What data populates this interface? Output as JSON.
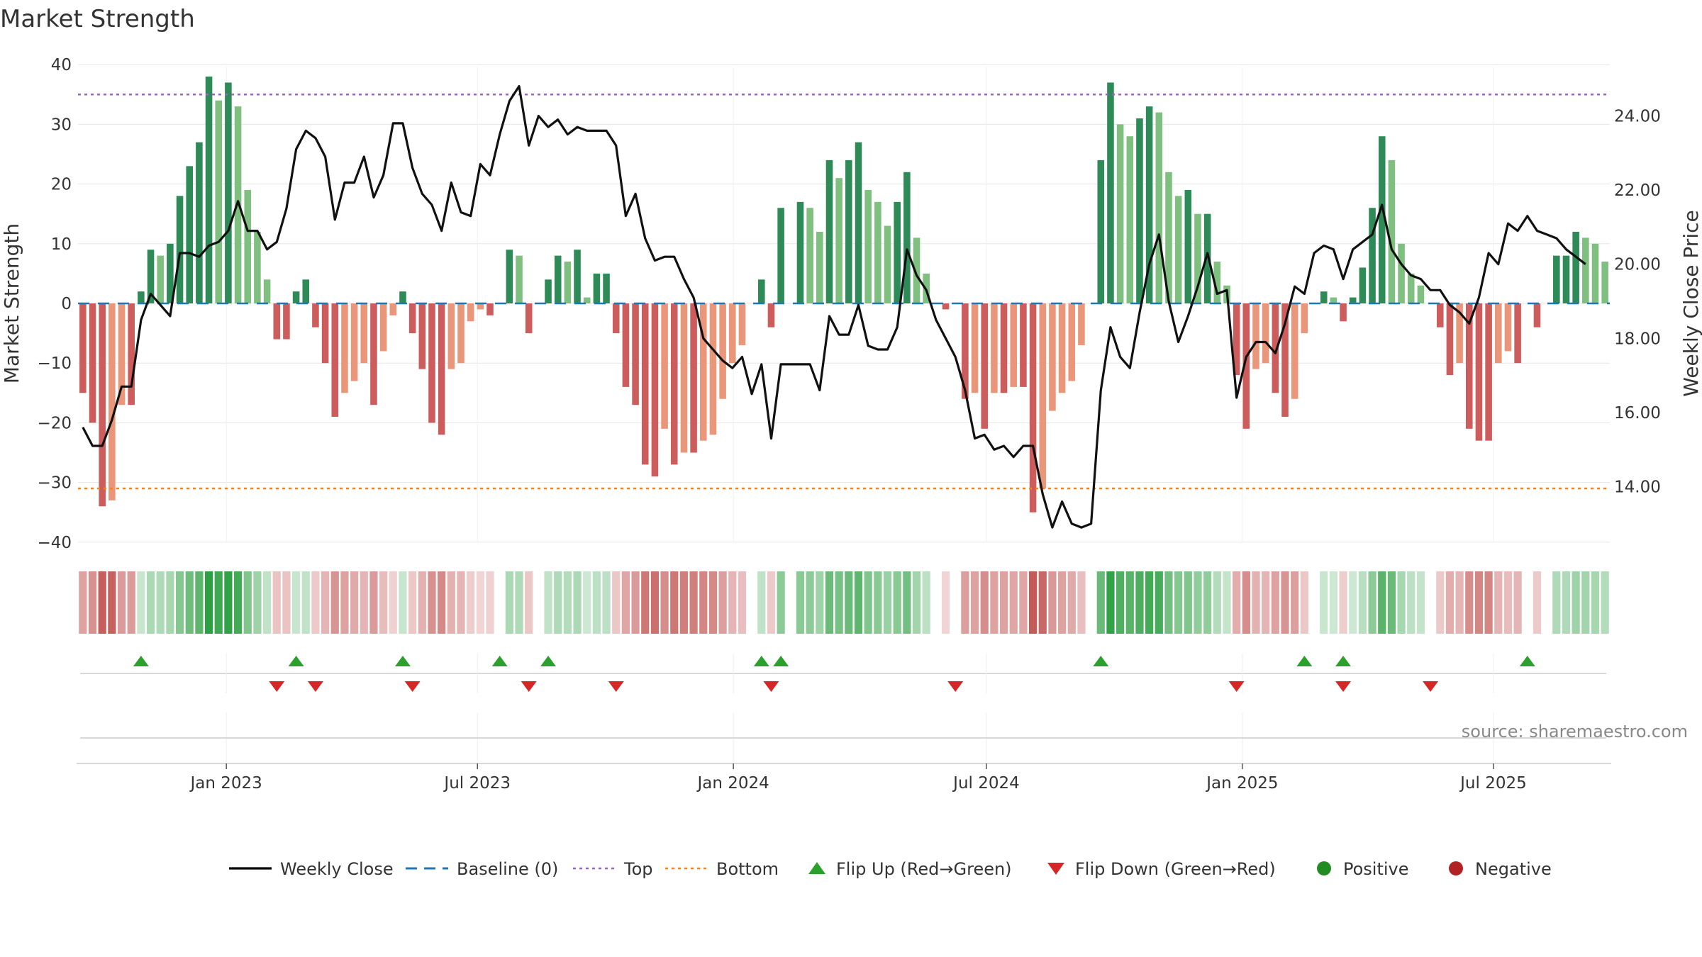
{
  "chart_data": {
    "type": "bar",
    "title": "Market Strength",
    "source_text": "source: sharemaestro.com",
    "ylabel_left": "Market Strength",
    "ylabel_right": "Weekly Close Price",
    "ylim_left": [
      -40,
      40
    ],
    "ylim_right": [
      12.5,
      25.5
    ],
    "left_ticks": [
      40,
      30,
      20,
      10,
      0,
      -10,
      -20,
      -30,
      -40
    ],
    "left_tick_labels": [
      "40",
      "30",
      "20",
      "10",
      "0",
      "−10",
      "−20",
      "−30",
      "−40"
    ],
    "right_ticks": [
      24,
      22,
      20,
      18,
      16,
      14
    ],
    "right_tick_labels": [
      "24.00",
      "22.00",
      "20.00",
      "18.00",
      "16.00",
      "14.00"
    ],
    "x_week_range": [
      0,
      158
    ],
    "x_ticks": [
      {
        "week": 15.3,
        "label": "Jan 2023"
      },
      {
        "week": 41.2,
        "label": "Jul 2023"
      },
      {
        "week": 67.6,
        "label": "Jan 2024"
      },
      {
        "week": 93.7,
        "label": "Jul 2024"
      },
      {
        "week": 120.1,
        "label": "Jan 2025"
      },
      {
        "week": 146.0,
        "label": "Jul 2025"
      }
    ],
    "top_line": 35,
    "bottom_line": -31,
    "strength": [
      -15,
      -20,
      -34,
      -33,
      -17,
      -17,
      2,
      9,
      8,
      10,
      18,
      23,
      27,
      38,
      34,
      37,
      33,
      19,
      12,
      4,
      -6,
      -6,
      2,
      4,
      -4,
      -10,
      -19,
      -15,
      -13,
      -10,
      -17,
      -8,
      -2,
      2,
      -5,
      -11,
      -20,
      -22,
      -11,
      -10,
      -3,
      -1,
      -2,
      0,
      9,
      8,
      -5,
      0,
      4,
      8,
      7,
      9,
      1,
      5,
      5,
      -5,
      -14,
      -17,
      -27,
      -29,
      -21,
      -27,
      -25,
      -25,
      -23,
      -22,
      -16,
      -10,
      -7,
      0,
      4,
      -4,
      16,
      0,
      17,
      16,
      12,
      24,
      21,
      24,
      27,
      19,
      17,
      13,
      17,
      22,
      11,
      5,
      0,
      -1,
      0,
      -16,
      -15,
      -21,
      -15,
      -15,
      -14,
      -14,
      -35,
      -31,
      -18,
      -15,
      -13,
      -7,
      0,
      24,
      37,
      30,
      28,
      31,
      33,
      32,
      22,
      18,
      19,
      15,
      15,
      7,
      3,
      -12,
      -21,
      -11,
      -10,
      -15,
      -19,
      -16,
      -5,
      0,
      2,
      1,
      -3,
      1,
      6,
      16,
      28,
      24,
      10,
      5,
      3,
      0,
      -4,
      -12,
      -10,
      -21,
      -23,
      -23,
      -10,
      -8,
      -10,
      0,
      -4,
      0,
      8,
      8,
      12,
      11,
      10,
      7
    ],
    "series": [
      {
        "name": "Weekly Close",
        "values": [
          15.6,
          15.1,
          15.1,
          15.8,
          16.7,
          16.7,
          18.5,
          19.2,
          18.9,
          18.6,
          20.3,
          20.3,
          20.2,
          20.5,
          20.6,
          20.9,
          21.7,
          20.9,
          20.9,
          20.4,
          20.6,
          21.5,
          23.1,
          23.6,
          23.4,
          22.9,
          21.2,
          22.2,
          22.2,
          22.9,
          21.8,
          22.4,
          23.8,
          23.8,
          22.6,
          21.9,
          21.6,
          20.9,
          22.2,
          21.4,
          21.3,
          22.7,
          22.4,
          23.5,
          24.4,
          24.8,
          23.2,
          24.0,
          23.7,
          23.9,
          23.5,
          23.7,
          23.6,
          23.6,
          23.6,
          23.2,
          21.3,
          21.9,
          20.7,
          20.1,
          20.2,
          20.2,
          19.6,
          19.1,
          18.0,
          17.7,
          17.4,
          17.2,
          17.5,
          16.5,
          17.3,
          15.3,
          17.3,
          17.3,
          17.3,
          17.3,
          16.6,
          18.6,
          18.1,
          18.1,
          18.9,
          17.8,
          17.7,
          17.7,
          18.3,
          20.4,
          19.7,
          19.3,
          18.5,
          18.0,
          17.5,
          16.6,
          15.3,
          15.4,
          15.0,
          15.1,
          14.8,
          15.1,
          15.1,
          13.8,
          12.9,
          13.6,
          13.0,
          12.9,
          13.0,
          16.6,
          18.3,
          17.5,
          17.2,
          18.7,
          20.0,
          20.8,
          19.0,
          17.9,
          18.6,
          19.4,
          20.3,
          19.2,
          19.3,
          16.4,
          17.5,
          17.9,
          17.9,
          17.6,
          18.4,
          19.4,
          19.2,
          20.3,
          20.5,
          20.4,
          19.6,
          20.4,
          20.6,
          20.8,
          21.6,
          20.4,
          20.0,
          19.7,
          19.6,
          19.3,
          19.3,
          18.9,
          18.7,
          18.4,
          19.1,
          20.3,
          20.0,
          21.1,
          20.9,
          21.3,
          20.9,
          20.8,
          20.7,
          20.4,
          20.2,
          20.0
        ]
      }
    ],
    "flip_up_weeks": [
      6,
      22,
      33,
      43,
      48,
      70,
      72,
      105,
      126,
      130,
      149
    ],
    "flip_down_weeks": [
      20,
      24,
      34,
      46,
      55,
      71,
      90,
      119,
      130,
      139
    ],
    "legend": [
      {
        "key": "weekly_close",
        "label": "Weekly Close",
        "color": "#000000"
      },
      {
        "key": "baseline",
        "label": "Baseline (0)",
        "color": "#1f77b4"
      },
      {
        "key": "top",
        "label": "Top",
        "color": "#9467bd"
      },
      {
        "key": "bottom",
        "label": "Bottom",
        "color": "#ff7f0e"
      },
      {
        "key": "flip_up",
        "label": "Flip Up (Red→Green)",
        "color": "#2ca02c"
      },
      {
        "key": "flip_down",
        "label": "Flip Down (Green→Red)",
        "color": "#d62728"
      },
      {
        "key": "positive",
        "label": "Positive",
        "color": "#228b22"
      },
      {
        "key": "negative",
        "label": "Negative",
        "color": "#b22222"
      }
    ],
    "colors": {
      "pos_strong": "#2e8b57",
      "pos_weak": "#7fbf7f",
      "neg_strong": "#cd5c5c",
      "neg_weak": "#e9967a",
      "top_line": "#9467bd",
      "bottom_line": "#ff7f0e",
      "baseline": "#1f77b4"
    }
  }
}
